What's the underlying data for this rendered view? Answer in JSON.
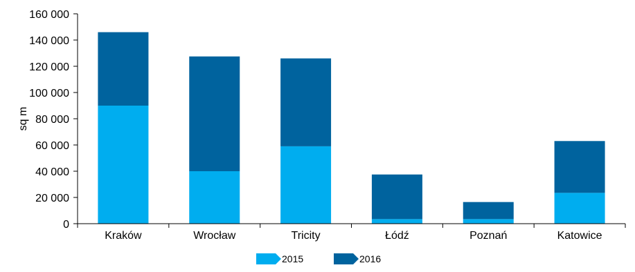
{
  "chart_data": {
    "type": "bar",
    "stacked": true,
    "categories": [
      "Kraków",
      "Wrocław",
      "Tricity",
      "Łódź",
      "Poznań",
      "Katowice"
    ],
    "series": [
      {
        "name": "2015",
        "color": "#00ADEF",
        "values": [
          90000,
          40000,
          59000,
          3500,
          3500,
          23500
        ]
      },
      {
        "name": "2016",
        "color": "#00639E",
        "values": [
          56000,
          87500,
          67000,
          34000,
          13000,
          39500
        ]
      }
    ],
    "title": "",
    "xlabel": "",
    "ylabel": "sq m",
    "ylim": [
      0,
      160000
    ],
    "yticks": [
      0,
      20000,
      40000,
      60000,
      80000,
      100000,
      120000,
      140000,
      160000
    ],
    "ytick_labels": [
      "0",
      "20 000",
      "40 000",
      "60 000",
      "80 000",
      "100 000",
      "120 000",
      "140 000",
      "160 000"
    ],
    "grid": false,
    "legend_position": "bottom"
  }
}
